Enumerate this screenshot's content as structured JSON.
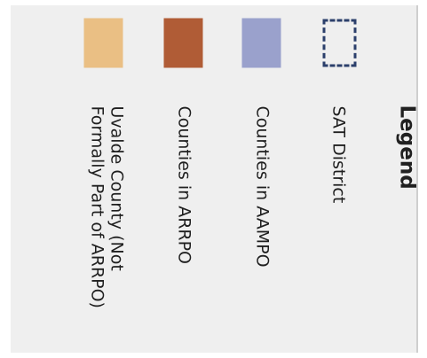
{
  "legend": {
    "title": "Legend",
    "items": [
      {
        "label": "SAT District",
        "style": "dashed-outline",
        "color": "#2b3f6b"
      },
      {
        "label": "Counties in AAMPO",
        "style": "fill",
        "color": "#9aa1cc"
      },
      {
        "label": "Counties in ARRPO",
        "style": "fill",
        "color": "#b05c36"
      },
      {
        "label": "Uvalde County (Not Formally Part of ARRPO)",
        "style": "fill",
        "color": "#eabf84"
      }
    ]
  }
}
